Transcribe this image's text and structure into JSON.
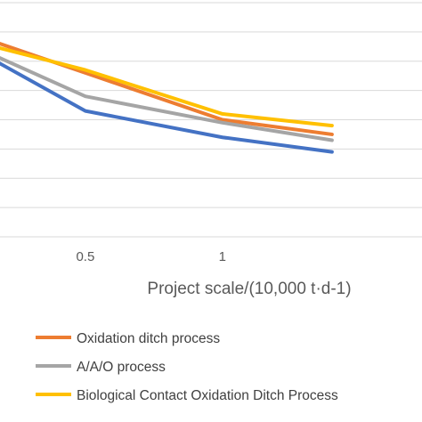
{
  "chart_data": {
    "type": "line",
    "x": [
      0,
      0.5,
      1,
      1.4
    ],
    "x_tick_labels": [
      "0.5",
      "1"
    ],
    "xlabel": "Project scale/(10,000 t·d-1)",
    "ylabel": "",
    "title": "",
    "ylim": [
      0,
      8
    ],
    "grid": true,
    "legend_position": "bottom",
    "series": [
      {
        "name": "Oxidation ditch process",
        "color": "#ED7D31",
        "values": [
          7.2,
          5.6,
          4.0,
          3.5
        ]
      },
      {
        "name": "A/A/O process",
        "color": "#A5A5A5",
        "values": [
          6.9,
          4.8,
          3.9,
          3.3
        ]
      },
      {
        "name": "Biological Contact Oxidation Ditch Process",
        "color": "#FFC000",
        "values": [
          6.9,
          5.7,
          4.2,
          3.8
        ]
      },
      {
        "color": "#4472C4",
        "values": [
          6.9,
          4.3,
          3.4,
          2.9
        ]
      }
    ]
  }
}
